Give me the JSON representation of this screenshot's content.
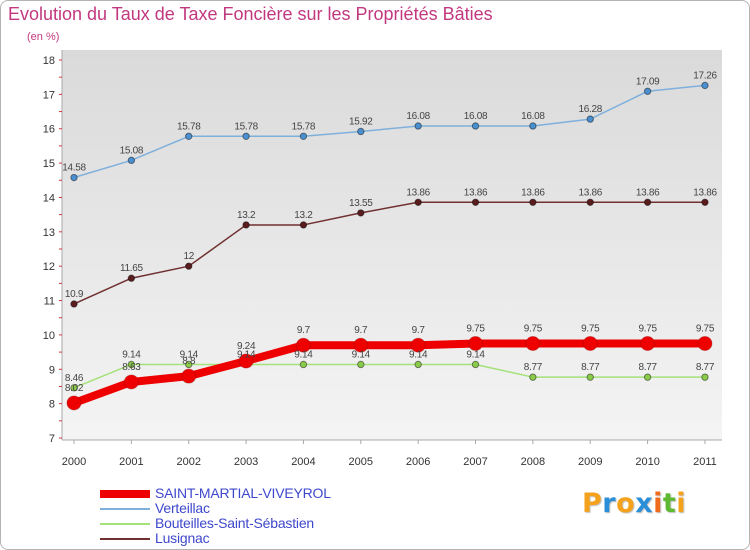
{
  "chart_data": {
    "type": "line",
    "title": "Evolution du Taux de Taxe Foncière sur les Propriétés Bâties",
    "subtitle": "(en %)",
    "categories": [
      "2000",
      "2001",
      "2002",
      "2003",
      "2004",
      "2005",
      "2006",
      "2007",
      "2008",
      "2009",
      "2010",
      "2011"
    ],
    "ylim": [
      7,
      18
    ],
    "yticks": [
      7,
      8,
      9,
      10,
      11,
      12,
      13,
      14,
      15,
      16,
      17,
      18
    ],
    "grid": false,
    "data_labels": true,
    "legend_position": "bottom-left",
    "series": [
      {
        "name": "SAINT-MARTIAL-VIVEYROL",
        "color": "#ee0000",
        "marker_color": "#ee0000",
        "values": [
          8.02,
          8.63,
          8.8,
          9.24,
          9.7,
          9.7,
          9.7,
          9.75,
          9.75,
          9.75,
          9.75,
          9.75
        ]
      },
      {
        "name": "Verteillac",
        "color": "#7fb0dc",
        "marker_color": "#4a8fcf",
        "values": [
          14.58,
          15.08,
          15.78,
          15.78,
          15.78,
          15.92,
          16.08,
          16.08,
          16.08,
          16.28,
          17.09,
          17.26
        ]
      },
      {
        "name": "Bouteilles-Saint-Sébastien",
        "color": "#a5e27a",
        "marker_color": "#8acb4a",
        "values": [
          8.46,
          9.14,
          9.14,
          9.14,
          9.14,
          9.14,
          9.14,
          9.14,
          8.77,
          8.77,
          8.77,
          8.77
        ]
      },
      {
        "name": "Lusignac",
        "color": "#703030",
        "marker_color": "#5a1c1c",
        "values": [
          10.9,
          11.65,
          12,
          13.2,
          13.2,
          13.55,
          13.86,
          13.86,
          13.86,
          13.86,
          13.86,
          13.86
        ]
      }
    ]
  },
  "logo": {
    "text": "Proxiti",
    "letter_colors": [
      "#f4a21c",
      "#2a8fd8",
      "#f4a21c",
      "#2a8fd8",
      "#f06a1c",
      "#5fb832",
      "#f4a21c"
    ]
  },
  "colors": {
    "title": "#c2387f",
    "legend_text": "#3e48cc",
    "axis": "#a8a8a8",
    "axis_tick_accent": "#d23a3a"
  }
}
